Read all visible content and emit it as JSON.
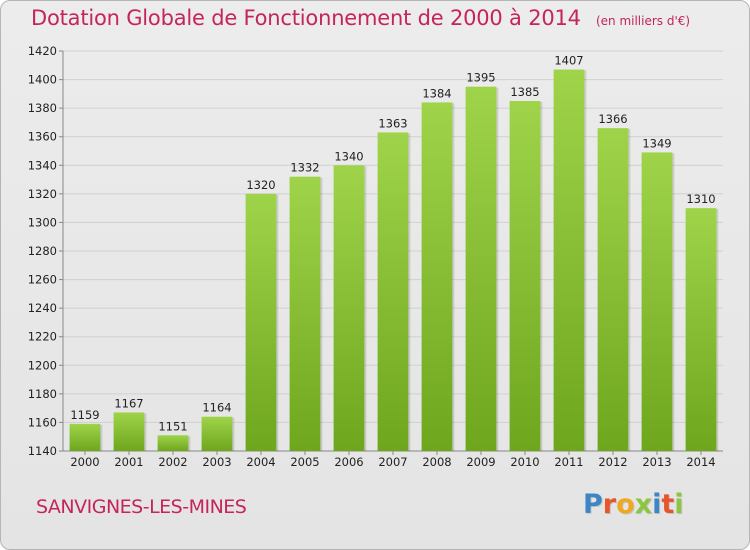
{
  "chart_data": {
    "type": "bar",
    "title": "Dotation Globale de Fonctionnement de 2000 à 2014",
    "subtitle": "(en milliers d'€)",
    "categories": [
      "2000",
      "2001",
      "2002",
      "2003",
      "2004",
      "2005",
      "2006",
      "2007",
      "2008",
      "2009",
      "2010",
      "2011",
      "2012",
      "2013",
      "2014"
    ],
    "values": [
      1159,
      1167,
      1151,
      1164,
      1320,
      1332,
      1340,
      1363,
      1384,
      1395,
      1385,
      1407,
      1366,
      1349,
      1310
    ],
    "ylim": [
      1140,
      1420
    ],
    "yticks": [
      1140,
      1160,
      1180,
      1200,
      1220,
      1240,
      1260,
      1280,
      1300,
      1320,
      1340,
      1360,
      1380,
      1400,
      1420
    ],
    "xlabel": "",
    "ylabel": "",
    "grid": true,
    "bar_color_top": "#9fd44a",
    "bar_color_bottom": "#6ea61e"
  },
  "footer": {
    "commune": "SANVIGNES-LES-MINES",
    "brand_letters": [
      {
        "ch": "P",
        "color": "#3d86c6"
      },
      {
        "ch": "r",
        "color": "#e8542c"
      },
      {
        "ch": "o",
        "color": "#f0a81e"
      },
      {
        "ch": "x",
        "color": "#8cc63f"
      },
      {
        "ch": "i",
        "color": "#3d86c6"
      },
      {
        "ch": "t",
        "color": "#e8542c"
      },
      {
        "ch": "i",
        "color": "#8cc63f"
      }
    ]
  },
  "colors": {
    "accent": "#c5245c"
  }
}
